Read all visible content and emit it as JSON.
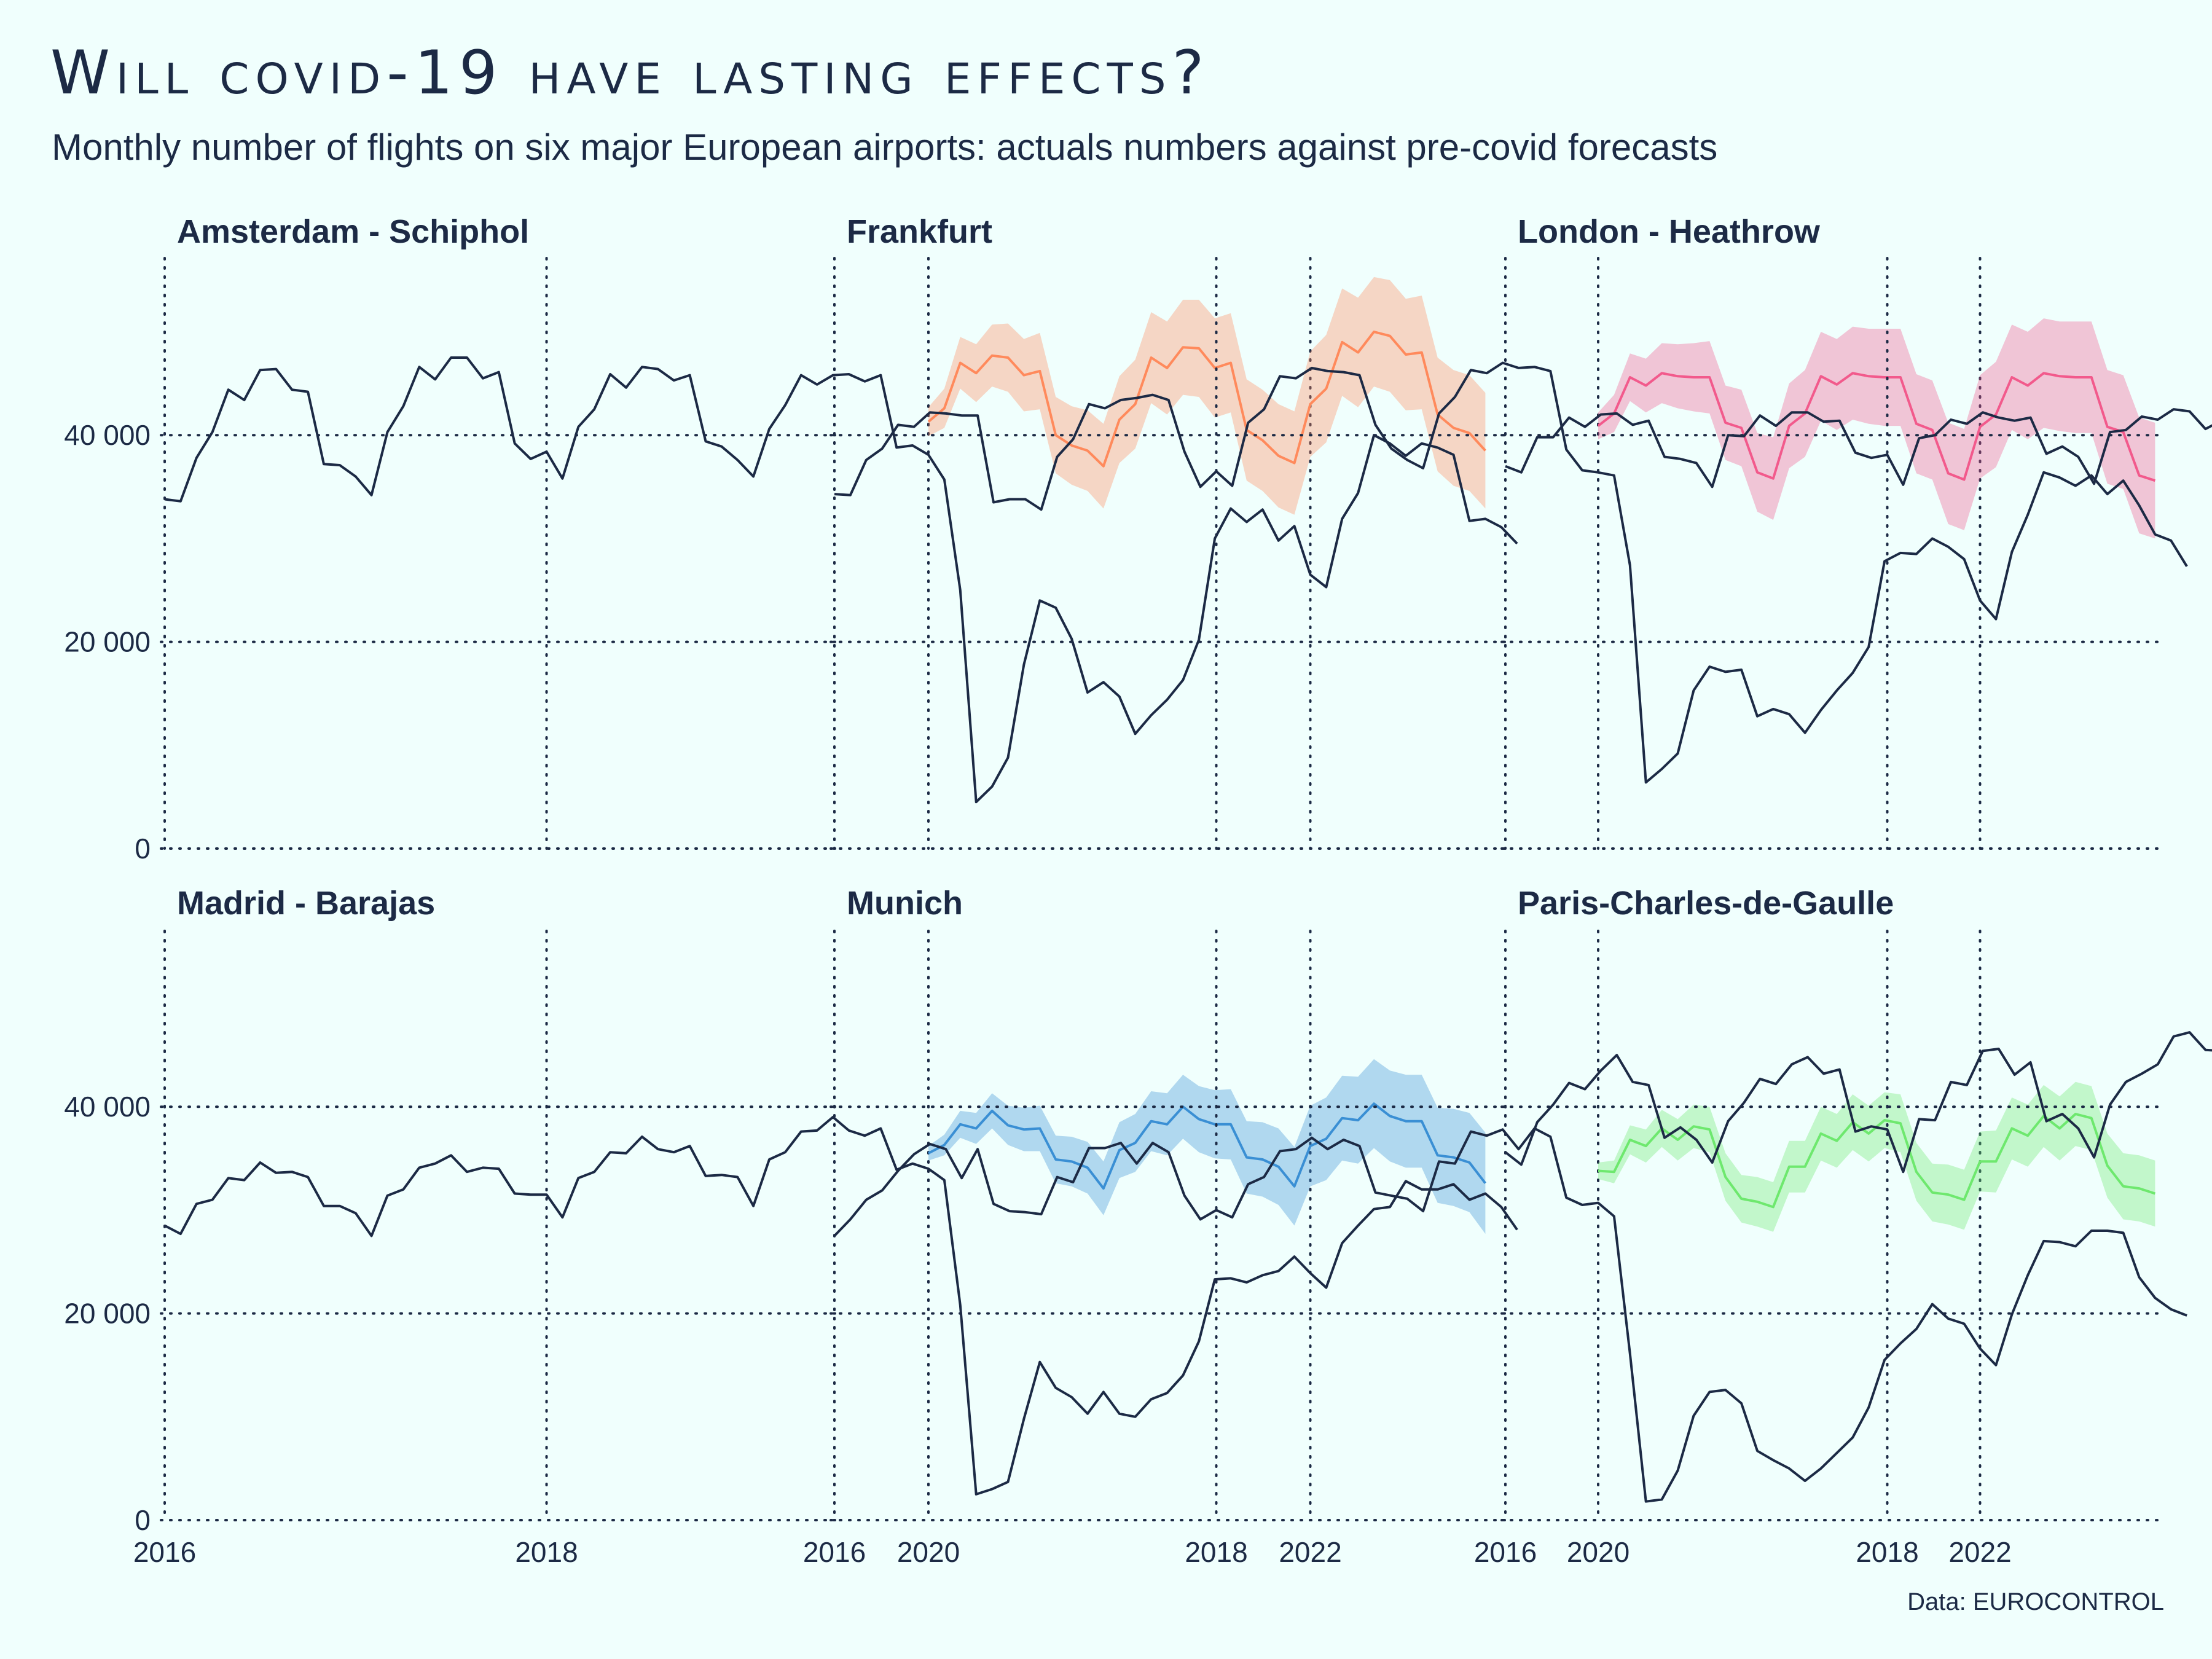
{
  "title": "Will covid-19 have lasting effects?",
  "subtitle": "Monthly number of flights on six major European airports: actuals numbers against pre-covid forecasts",
  "source": "Data: EUROCONTROL",
  "colors": {
    "background": "#f0fffd",
    "actual_line": "#1c2a45",
    "Amsterdam - Schiphol": "#ff8a5c",
    "Frankfurt": "#f25a8c",
    "London - Heathrow": "#d455c8",
    "Madrid - Barajas": "#3a8fd4",
    "Munich": "#6ee86e",
    "Paris-Charles-de-Gaulle": "#c8e64a"
  },
  "chart_data": {
    "type": "line",
    "facets": [
      "Amsterdam - Schiphol",
      "Frankfurt",
      "London - Heathrow",
      "Madrid - Barajas",
      "Munich",
      "Paris-Charles-de-Gaulle"
    ],
    "x_unit": "month",
    "xlim": [
      "2015-10",
      "2023-07"
    ],
    "ylim": [
      0,
      55000
    ],
    "x_ticks": [
      {
        "value": "2016-01",
        "label": "2016"
      },
      {
        "value": "2018-01",
        "label": "2018"
      },
      {
        "value": "2020-01",
        "label": "2020"
      },
      {
        "value": "2022-01",
        "label": "2022"
      }
    ],
    "y_ticks": [
      {
        "value": 0,
        "label": "0"
      },
      {
        "value": 20000,
        "label": "20 000"
      },
      {
        "value": 40000,
        "label": "40 000"
      }
    ],
    "grid": "dotted",
    "legend": "none",
    "actual_start": "2016-01",
    "forecast_start": "2020-01",
    "series": [
      {
        "facet": "Amsterdam - Schiphol",
        "actual": [
          33800,
          33600,
          37800,
          40300,
          44400,
          43400,
          46300,
          46400,
          44400,
          44200,
          37200,
          37100,
          36000,
          34200,
          40300,
          42800,
          46600,
          45400,
          47500,
          47500,
          45500,
          46100,
          39200,
          37700,
          38400,
          35800,
          40800,
          42500,
          45900,
          44600,
          46600,
          46400,
          45300,
          45800,
          39400,
          38900,
          37600,
          36000,
          40600,
          42900,
          45800,
          44900,
          45800,
          45900,
          45200,
          45800,
          38800,
          39000,
          38100,
          35700,
          25000,
          4500,
          6000,
          8800,
          17800,
          24000,
          23300,
          20300,
          15100,
          16100,
          14700,
          11100,
          12900,
          14400,
          16300,
          20200,
          30000,
          32900,
          31600,
          32800,
          29800,
          31200,
          26500,
          25300,
          31900,
          34400,
          40000,
          39200,
          38000,
          39200,
          38800,
          38100,
          31700,
          31900,
          31100,
          29500
        ],
        "forecast": [
          41300,
          42600,
          47000,
          46000,
          47700,
          47500,
          45800,
          46200,
          40000,
          39000,
          38500,
          37000,
          41500,
          43000,
          47500,
          46500,
          48500,
          48400,
          46500,
          47000,
          40500,
          39500,
          38000,
          37300,
          43000,
          44500,
          49000,
          48000,
          50000,
          49600,
          47800,
          48000,
          42000,
          40700,
          40200,
          38500
        ],
        "band": [
          1400,
          1900,
          2500,
          2800,
          3000,
          3300,
          3500,
          3700,
          3700,
          3800,
          3900,
          4100,
          4200,
          4300,
          4400,
          4500,
          4600,
          4700,
          4800,
          4800,
          4900,
          4900,
          5000,
          5000,
          5100,
          5200,
          5200,
          5300,
          5300,
          5400,
          5400,
          5500,
          5500,
          5600,
          5600,
          5600
        ]
      },
      {
        "facet": "Frankfurt",
        "actual": [
          34300,
          34200,
          37600,
          38700,
          41000,
          40800,
          42200,
          42100,
          41900,
          41900,
          33500,
          33800,
          33800,
          32800,
          37900,
          39600,
          43000,
          42600,
          43400,
          43600,
          43900,
          43400,
          38400,
          35000,
          36500,
          35100,
          41200,
          42500,
          45700,
          45500,
          46500,
          46200,
          46100,
          45800,
          41000,
          38700,
          37600,
          36800,
          42100,
          43700,
          46300,
          46000,
          47000,
          46500,
          46600,
          46200,
          38600,
          36600,
          36400,
          36100,
          27400,
          6400,
          7700,
          9200,
          15300,
          17600,
          17100,
          17300,
          12800,
          13500,
          13000,
          11200,
          13400,
          15300,
          17000,
          19500,
          27800,
          28600,
          28500,
          30000,
          29200,
          28000,
          24000,
          22200,
          28700,
          32300,
          36400,
          35900,
          35100,
          36100,
          34300,
          35600,
          33200,
          30400,
          29800,
          27300
        ],
        "forecast": [
          40900,
          42100,
          45600,
          44800,
          46000,
          45700,
          45600,
          45600,
          41200,
          40700,
          36400,
          35800,
          40900,
          42100,
          45700,
          44900,
          46000,
          45700,
          45600,
          45600,
          41100,
          40500,
          36300,
          35700,
          40800,
          42000,
          45600,
          44800,
          46000,
          45700,
          45600,
          45600,
          40800,
          40300,
          36100,
          35600
        ],
        "band": [
          1300,
          1800,
          2300,
          2600,
          2900,
          3100,
          3300,
          3500,
          3600,
          3700,
          3800,
          4000,
          4100,
          4200,
          4300,
          4400,
          4500,
          4600,
          4700,
          4700,
          4800,
          4800,
          4900,
          4900,
          5000,
          5100,
          5100,
          5200,
          5300,
          5300,
          5400,
          5400,
          5500,
          5500,
          5600,
          5600
        ]
      },
      {
        "facet": "London - Heathrow",
        "actual": [
          37000,
          36400,
          39800,
          39800,
          41700,
          40800,
          42000,
          42100,
          41000,
          41400,
          37900,
          37700,
          37300,
          35000,
          40000,
          39900,
          41900,
          40900,
          42200,
          42200,
          41300,
          41400,
          38300,
          37800,
          38100,
          35200,
          39700,
          40000,
          41500,
          41100,
          42200,
          41700,
          41400,
          41700,
          38200,
          38900,
          37900,
          35300,
          40300,
          40500,
          41800,
          41500,
          42500,
          42300,
          40600,
          41400,
          38200,
          38700,
          38300,
          35300,
          26300,
          5400,
          7000,
          7600,
          12100,
          15400,
          14800,
          18300,
          11800,
          12800,
          10400,
          8400,
          10100,
          10500,
          11600,
          13800,
          17000,
          19800,
          21400,
          24300,
          24300,
          25200,
          22200,
          20500,
          28400,
          32300,
          35300,
          34900,
          34300,
          34600,
          33900,
          34900,
          34600,
          34800,
          35400,
          33000
        ],
        "forecast": [
          39500,
          39700,
          41700,
          40900,
          42200,
          42100,
          41100,
          41500,
          38500,
          37900,
          38100,
          35200,
          39700,
          40000,
          41800,
          41100,
          42300,
          42300,
          41300,
          41800,
          38500,
          38000,
          38000,
          35300,
          39700,
          40000,
          41900,
          41200,
          42400,
          42400,
          41400,
          41700,
          38500,
          38000,
          37900,
          35400
        ],
        "band": [
          300,
          400,
          500,
          600,
          700,
          800,
          800,
          900,
          900,
          1000,
          1000,
          1000,
          1100,
          1100,
          1100,
          1200,
          1200,
          1200,
          1300,
          1300,
          1300,
          1300,
          1400,
          1400,
          1400,
          1400,
          1400,
          1500,
          1500,
          1500,
          1500,
          1500,
          1600,
          1600,
          1600,
          1600
        ]
      },
      {
        "facet": "Madrid - Barajas",
        "actual": [
          28500,
          27700,
          30600,
          31000,
          33100,
          32900,
          34600,
          33600,
          33700,
          33200,
          30400,
          30400,
          29700,
          27500,
          31400,
          32000,
          34100,
          34500,
          35300,
          33700,
          34100,
          34000,
          31600,
          31500,
          31500,
          29300,
          33100,
          33700,
          35600,
          35500,
          37100,
          35900,
          35600,
          36200,
          33300,
          33400,
          33200,
          30400,
          34900,
          35600,
          37600,
          37700,
          39000,
          37700,
          37200,
          37900,
          33900,
          34500,
          34000,
          32900,
          20800,
          2500,
          3000,
          3700,
          9800,
          15300,
          12800,
          11900,
          10300,
          12400,
          10300,
          10000,
          11700,
          12300,
          14000,
          17300,
          23300,
          23400,
          23000,
          23700,
          24100,
          25500,
          23900,
          22500,
          26800,
          28500,
          30100,
          30300,
          32800,
          32000,
          32000,
          32500,
          31000,
          31600,
          30300,
          28100
        ],
        "forecast": [
          35500,
          36300,
          38300,
          37900,
          39600,
          38200,
          37800,
          37900,
          34900,
          34700,
          34100,
          32100,
          35800,
          36500,
          38600,
          38300,
          40000,
          38800,
          38300,
          38300,
          35100,
          34900,
          34200,
          32300,
          36200,
          36900,
          38900,
          38700,
          40300,
          39100,
          38600,
          38600,
          35300,
          35100,
          34600,
          32600
        ],
        "band": [
          700,
          1000,
          1300,
          1500,
          1700,
          1900,
          2100,
          2200,
          2300,
          2400,
          2500,
          2600,
          2700,
          2800,
          2900,
          3000,
          3100,
          3200,
          3300,
          3400,
          3500,
          3600,
          3700,
          3800,
          3900,
          4000,
          4100,
          4200,
          4300,
          4400,
          4500,
          4500,
          4600,
          4700,
          4800,
          4900
        ]
      },
      {
        "facet": "Munich",
        "actual": [
          27500,
          29100,
          31000,
          31900,
          33800,
          35400,
          36400,
          35900,
          33100,
          35900,
          30600,
          29900,
          29800,
          29600,
          33200,
          32700,
          36000,
          36000,
          36500,
          34500,
          36500,
          35600,
          31400,
          29100,
          30000,
          29300,
          32500,
          33200,
          35700,
          35900,
          37000,
          35900,
          36800,
          36200,
          31700,
          31400,
          31100,
          29900,
          34700,
          34500,
          37600,
          37200,
          37800,
          35900,
          37900,
          37100,
          31200,
          30500,
          30700,
          29400,
          16100,
          1800,
          2000,
          4800,
          10100,
          12400,
          12600,
          11300,
          6700,
          5800,
          5000,
          3800,
          5000,
          6500,
          8000,
          10900,
          15500,
          17100,
          18500,
          20900,
          19500,
          19000,
          16600,
          15000,
          19900,
          23700,
          27000,
          26900,
          26500,
          28000,
          28000,
          27800,
          23500,
          21500,
          20400,
          19800
        ],
        "forecast": [
          33800,
          33700,
          36800,
          36200,
          37900,
          36800,
          38100,
          37800,
          33200,
          31100,
          30800,
          30300,
          34200,
          34200,
          37400,
          36700,
          38500,
          37400,
          38700,
          38400,
          33700,
          31700,
          31500,
          31000,
          34700,
          34700,
          37900,
          37200,
          39100,
          37900,
          39300,
          38900,
          34300,
          32300,
          32100,
          31600
        ],
        "band": [
          800,
          1100,
          1400,
          1600,
          1800,
          2000,
          2100,
          2200,
          2300,
          2300,
          2400,
          2400,
          2500,
          2500,
          2600,
          2600,
          2700,
          2700,
          2700,
          2800,
          2800,
          2800,
          2900,
          2900,
          2900,
          3000,
          3000,
          3000,
          3000,
          3100,
          3100,
          3100,
          3100,
          3200,
          3200,
          3200
        ]
      },
      {
        "facet": "Paris-Charles-de-Gaulle",
        "actual": [
          35600,
          34400,
          38500,
          40200,
          42300,
          41700,
          43500,
          45000,
          42400,
          42100,
          37000,
          38000,
          36800,
          34600,
          38600,
          40400,
          42700,
          42200,
          44100,
          44800,
          43200,
          43600,
          37600,
          38100,
          37800,
          33700,
          38800,
          38700,
          42400,
          42100,
          45400,
          45600,
          43100,
          44300,
          38600,
          39300,
          37900,
          35100,
          40200,
          42400,
          43200,
          44100,
          46800,
          47200,
          45500,
          45400,
          39100,
          38700,
          38400,
          35900,
          24500,
          4500,
          6000,
          10000,
          18800,
          22900,
          18200,
          16500,
          11900,
          13900,
          14100,
          12500,
          14200,
          14100,
          15100,
          18900,
          26800,
          29300,
          25300,
          27200,
          28300,
          29700,
          25200,
          23800,
          29500,
          33000,
          37200,
          37500,
          39200,
          40200,
          39800,
          37400,
          34000,
          35300,
          33500,
          31400
        ],
        "forecast": [
          40000,
          41700,
          43600,
          43700,
          45800,
          46600,
          44100,
          44200,
          38500,
          38500,
          37500,
          35400,
          40400,
          42200,
          44100,
          44200,
          46300,
          47200,
          44500,
          44600,
          38800,
          38800,
          37900,
          35800,
          40700,
          42600,
          44500,
          44600,
          46800,
          47600,
          45000,
          45000,
          39100,
          39100,
          38200,
          36100
        ],
        "band": [
          900,
          1300,
          1700,
          2000,
          2200,
          2400,
          2600,
          2700,
          2800,
          2900,
          3000,
          3100,
          3100,
          3200,
          3300,
          3300,
          3400,
          3400,
          3500,
          3500,
          3600,
          3600,
          3600,
          3700,
          3700,
          3700,
          3800,
          3800,
          3800,
          3900,
          3900,
          3900,
          4000,
          4000,
          4000,
          4000
        ]
      }
    ]
  }
}
